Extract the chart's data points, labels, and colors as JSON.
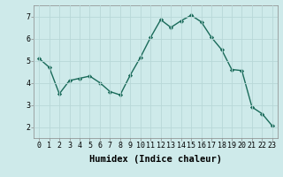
{
  "x": [
    0,
    1,
    2,
    3,
    4,
    5,
    6,
    7,
    8,
    9,
    10,
    11,
    12,
    13,
    14,
    15,
    16,
    17,
    18,
    19,
    20,
    21,
    22,
    23
  ],
  "y": [
    5.1,
    4.7,
    3.5,
    4.1,
    4.2,
    4.3,
    4.0,
    3.6,
    3.45,
    4.35,
    5.15,
    6.05,
    6.85,
    6.5,
    6.8,
    7.05,
    6.75,
    6.05,
    5.5,
    4.6,
    4.55,
    2.9,
    2.6,
    2.05
  ],
  "xlabel": "Humidex (Indice chaleur)",
  "xlim": [
    -0.5,
    23.5
  ],
  "ylim": [
    1.5,
    7.5
  ],
  "yticks": [
    2,
    3,
    4,
    5,
    6,
    7
  ],
  "xticks": [
    0,
    1,
    2,
    3,
    4,
    5,
    6,
    7,
    8,
    9,
    10,
    11,
    12,
    13,
    14,
    15,
    16,
    17,
    18,
    19,
    20,
    21,
    22,
    23
  ],
  "line_color": "#1a6b5a",
  "marker": "D",
  "marker_size": 2.2,
  "bg_color": "#ceeaea",
  "grid_color": "#b8d8d8",
  "line_width": 1.0,
  "xlabel_fontsize": 7.5,
  "tick_fontsize": 6.0
}
